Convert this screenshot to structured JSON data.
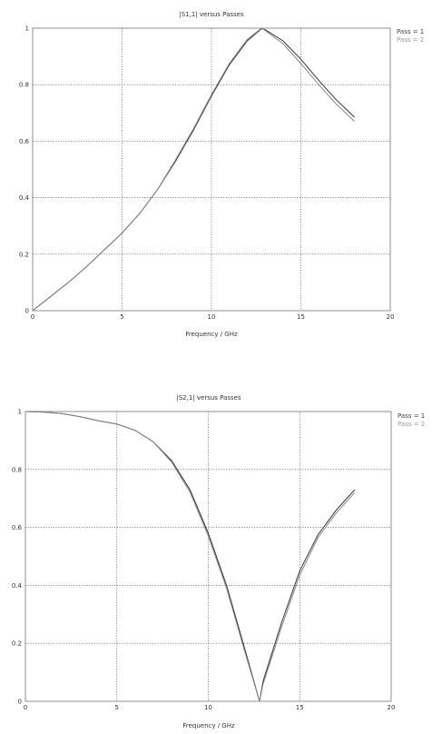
{
  "chart_data": [
    {
      "type": "line",
      "title": "|S1,1| versus Passes",
      "xlabel": "Frequency / GHz",
      "ylabel": "",
      "xlim": [
        0,
        20
      ],
      "ylim": [
        0,
        1
      ],
      "xticks": [
        "0",
        "5",
        "10",
        "15",
        "20"
      ],
      "yticks": [
        "0",
        "0.2",
        "0.4",
        "0.6",
        "0.8",
        "1"
      ],
      "grid": true,
      "legend_position": "top-right outside",
      "colors": {
        "pass1": "#333333",
        "pass2": "#888888"
      },
      "series": [
        {
          "name": "Pass = 1",
          "x": [
            0,
            1,
            2,
            3,
            4,
            5,
            6,
            7,
            8,
            9,
            10,
            11,
            12,
            12.8,
            13,
            14,
            15,
            16,
            17,
            18
          ],
          "y": [
            0,
            0.05,
            0.1,
            0.155,
            0.215,
            0.275,
            0.345,
            0.43,
            0.53,
            0.64,
            0.76,
            0.87,
            0.955,
            0.998,
            0.995,
            0.955,
            0.89,
            0.815,
            0.745,
            0.685
          ]
        },
        {
          "name": "Pass = 2",
          "x": [
            0,
            1,
            2,
            3,
            4,
            5,
            6,
            7,
            8,
            9,
            10,
            11,
            12,
            12.8,
            13,
            14,
            15,
            16,
            17,
            18
          ],
          "y": [
            0,
            0.05,
            0.1,
            0.155,
            0.215,
            0.275,
            0.345,
            0.43,
            0.535,
            0.645,
            0.765,
            0.875,
            0.96,
            1.0,
            0.992,
            0.945,
            0.875,
            0.8,
            0.73,
            0.67
          ]
        }
      ]
    },
    {
      "type": "line",
      "title": "|S2,1| versus Passes",
      "xlabel": "Frequency / GHz",
      "ylabel": "",
      "xlim": [
        0,
        20
      ],
      "ylim": [
        0,
        1
      ],
      "xticks": [
        "0",
        "5",
        "10",
        "15",
        "20"
      ],
      "yticks": [
        "0",
        "0.2",
        "0.4",
        "0.6",
        "0.8",
        "1"
      ],
      "grid": true,
      "legend_position": "top-right outside",
      "colors": {
        "pass1": "#333333",
        "pass2": "#888888"
      },
      "series": [
        {
          "name": "Pass = 1",
          "x": [
            0,
            1,
            2,
            3,
            4,
            5,
            6,
            7,
            8,
            9,
            10,
            11,
            12,
            12.8,
            13,
            14,
            15,
            16,
            17,
            18
          ],
          "y": [
            1.0,
            0.998,
            0.993,
            0.982,
            0.968,
            0.957,
            0.935,
            0.895,
            0.83,
            0.73,
            0.58,
            0.4,
            0.18,
            0.0,
            0.07,
            0.27,
            0.45,
            0.575,
            0.66,
            0.73
          ]
        },
        {
          "name": "Pass = 2",
          "x": [
            0,
            1,
            2,
            3,
            4,
            5,
            6,
            7,
            8,
            9,
            10,
            11,
            12,
            12.8,
            13,
            14,
            15,
            16,
            17,
            18
          ],
          "y": [
            1.0,
            0.998,
            0.993,
            0.982,
            0.968,
            0.957,
            0.935,
            0.895,
            0.825,
            0.722,
            0.57,
            0.39,
            0.17,
            0.0,
            0.06,
            0.255,
            0.435,
            0.565,
            0.65,
            0.72
          ]
        }
      ]
    }
  ]
}
